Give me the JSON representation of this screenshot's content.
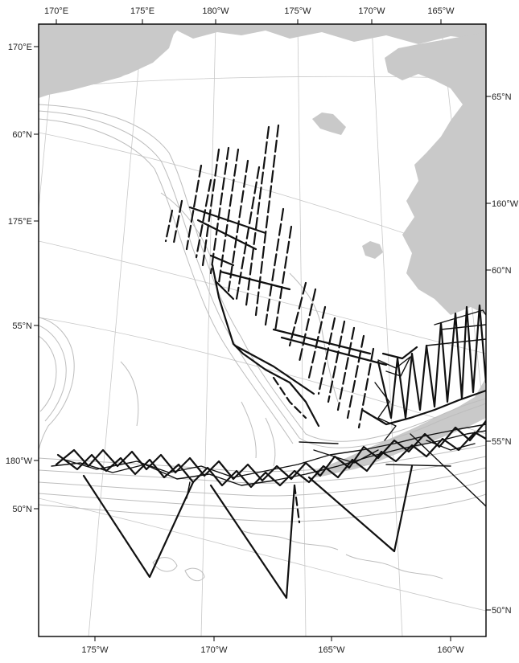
{
  "map": {
    "labels": {
      "top": [
        "170°E",
        "175°E",
        "180°W",
        "175°W",
        "170°W",
        "165°W"
      ],
      "bottom": [
        "175°W",
        "170°W",
        "165°W",
        "160°W"
      ],
      "left": [
        "170°E",
        "60°N",
        "175°E",
        "55°N",
        "180°W",
        "50°N"
      ],
      "right": [
        "65°N",
        "160°W",
        "60°N",
        "55°N",
        "50°N"
      ]
    },
    "colors": {
      "land": "#c9c9c9",
      "contour": "#bdbdbd",
      "graticule": "#c8c8c8",
      "track": "#111111",
      "background": "#ffffff"
    }
  }
}
